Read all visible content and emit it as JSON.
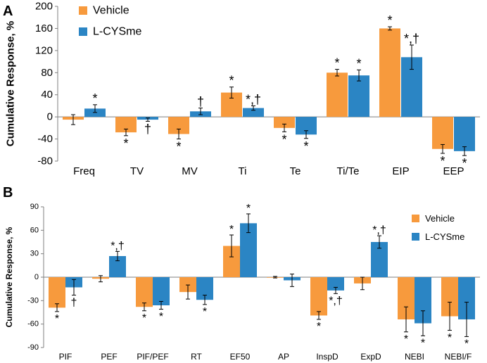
{
  "chart_data": [
    {
      "type": "bar",
      "panel": "A",
      "ylabel": "Cumulative Response, %",
      "ylim": [
        -80,
        200
      ],
      "yticks": [
        -80,
        -40,
        0,
        40,
        80,
        120,
        160,
        200
      ],
      "grid": false,
      "legend_position": "top-left",
      "categories": [
        "Freq",
        "TV",
        "MV",
        "Ti",
        "Te",
        "Ti/Te",
        "EIP",
        "EEP"
      ],
      "series": [
        {
          "name": "Vehicle",
          "color": "#F79A3D",
          "values": [
            -5,
            -28,
            -31,
            44,
            -20,
            80,
            160,
            -58
          ],
          "errors": [
            9,
            6,
            9,
            10,
            7,
            6,
            3,
            8
          ],
          "annotations": [
            "",
            "*",
            "*",
            "*",
            "*",
            "*",
            "*",
            "*"
          ]
        },
        {
          "name": "L-CYSme",
          "color": "#2B85C4",
          "values": [
            15,
            -5,
            10,
            16,
            -32,
            75,
            108,
            -62
          ],
          "errors": [
            7,
            3,
            6,
            4,
            7,
            10,
            22,
            8
          ],
          "annotations": [
            "*",
            "†",
            "†",
            "*,†",
            "*",
            "*",
            "*,†",
            "*"
          ]
        }
      ]
    },
    {
      "type": "bar",
      "panel": "B",
      "ylabel": "Cumulative Response, %",
      "ylim": [
        -90,
        90
      ],
      "yticks": [
        -90,
        -60,
        -30,
        0,
        30,
        60,
        90
      ],
      "grid": false,
      "legend_position": "top-right",
      "categories": [
        "PIF",
        "PEF",
        "PIF/PEF",
        "RT",
        "EF50",
        "AP",
        "InspD",
        "ExpD",
        "NEBI",
        "NEBI/F"
      ],
      "series": [
        {
          "name": "Vehicle",
          "color": "#F79A3D",
          "values": [
            -39,
            -2,
            -38,
            -19,
            40,
            0,
            -49,
            -8,
            -54,
            -50
          ],
          "errors": [
            5,
            4,
            5,
            9,
            14,
            1,
            5,
            8,
            16,
            18
          ],
          "annotations": [
            "*",
            "",
            "*",
            "",
            "*",
            "",
            "*",
            "",
            "*",
            "*"
          ]
        },
        {
          "name": "L-CYSme",
          "color": "#2B85C4",
          "values": [
            -13,
            27,
            -36,
            -29,
            69,
            -4,
            -17,
            45,
            -59,
            -54
          ],
          "errors": [
            10,
            6,
            5,
            6,
            12,
            8,
            4,
            8,
            16,
            22
          ],
          "annotations": [
            "†",
            "*,†",
            "*",
            "*",
            "*",
            "",
            "*,†",
            "*,†",
            "*",
            "*"
          ]
        }
      ]
    }
  ]
}
